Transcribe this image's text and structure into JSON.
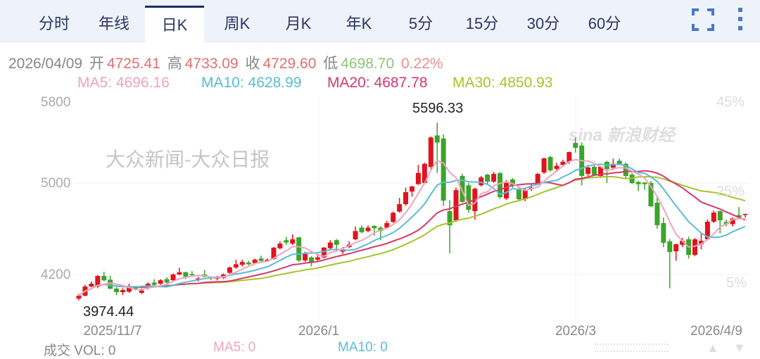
{
  "tabs": [
    {
      "label": "分时"
    },
    {
      "label": "年线"
    },
    {
      "label": "日K",
      "active": true
    },
    {
      "label": "周K"
    },
    {
      "label": "月K"
    },
    {
      "label": "年K"
    },
    {
      "label": "5分"
    },
    {
      "label": "15分"
    },
    {
      "label": "30分"
    },
    {
      "label": "60分"
    }
  ],
  "toolbar": {
    "fullscreen_icon": "fullscreen-icon",
    "more_icon": "more-vertical-icon"
  },
  "info": {
    "date": "2026/04/09",
    "open_label": "开",
    "open": "4725.41",
    "high_label": "高",
    "high": "4733.09",
    "close_label": "收",
    "close": "4729.60",
    "low_label": "低",
    "low": "4698.70",
    "change": "0.22%"
  },
  "ma": {
    "ma5": "MA5: 4696.16",
    "ma10": "MA10: 4628.99",
    "ma20": "MA20: 4687.78",
    "ma30": "MA30: 4850.93"
  },
  "colors": {
    "up": "#e0141e",
    "down": "#3aa52a",
    "ma5": "#f0a3bd",
    "ma10": "#5bbcd8",
    "ma20": "#d8386c",
    "ma30": "#a7c42a",
    "accent": "#1e2b66"
  },
  "chart_data": {
    "type": "candlestick",
    "y_ticks": [
      "5800",
      "5000",
      "4200"
    ],
    "pct_ticks": [
      "45%",
      "25%",
      "5%"
    ],
    "x_ticks": [
      "2025/11/7",
      "2026/1",
      "2026/3",
      "2026/4/9"
    ],
    "max_label": "5596.33",
    "min_label": "3974.44",
    "candles_ohlc": [
      [
        3990,
        4030,
        3974,
        4015
      ],
      [
        4015,
        4110,
        4010,
        4095
      ],
      [
        4095,
        4140,
        4090,
        4120
      ],
      [
        4095,
        4195,
        4080,
        4188
      ],
      [
        4188,
        4225,
        4140,
        4150
      ],
      [
        4155,
        4190,
        4070,
        4077
      ],
      [
        4077,
        4090,
        4020,
        4046
      ],
      [
        4046,
        4080,
        4020,
        4065
      ],
      [
        4050,
        4120,
        4040,
        4090
      ],
      [
        4090,
        4100,
        4060,
        4075
      ],
      [
        4040,
        4080,
        4030,
        4060
      ],
      [
        4090,
        4130,
        4070,
        4120
      ],
      [
        4130,
        4160,
        4100,
        4110
      ],
      [
        4120,
        4160,
        4110,
        4150
      ],
      [
        4160,
        4175,
        4120,
        4130
      ],
      [
        4150,
        4210,
        4140,
        4200
      ],
      [
        4200,
        4260,
        4195,
        4220
      ],
      [
        4220,
        4225,
        4160,
        4180
      ],
      [
        4205,
        4230,
        4190,
        4195
      ],
      [
        4150,
        4180,
        4140,
        4165
      ],
      [
        4200,
        4240,
        4175,
        4180
      ],
      [
        4175,
        4185,
        4150,
        4165
      ],
      [
        4165,
        4190,
        4150,
        4180
      ],
      [
        4170,
        4210,
        4160,
        4200
      ],
      [
        4215,
        4270,
        4205,
        4262
      ],
      [
        4262,
        4330,
        4250,
        4290
      ],
      [
        4285,
        4330,
        4270,
        4310
      ],
      [
        4305,
        4320,
        4280,
        4290
      ],
      [
        4300,
        4340,
        4290,
        4330
      ],
      [
        4340,
        4365,
        4310,
        4320
      ],
      [
        4320,
        4340,
        4310,
        4330
      ],
      [
        4335,
        4440,
        4330,
        4435
      ],
      [
        4430,
        4490,
        4420,
        4470
      ],
      [
        4500,
        4530,
        4460,
        4480
      ],
      [
        4470,
        4550,
        4460,
        4508
      ],
      [
        4525,
        4530,
        4310,
        4323
      ],
      [
        4323,
        4400,
        4310,
        4380
      ],
      [
        4350,
        4360,
        4270,
        4310
      ],
      [
        4330,
        4380,
        4320,
        4350
      ],
      [
        4350,
        4440,
        4340,
        4435
      ],
      [
        4430,
        4500,
        4420,
        4480
      ],
      [
        4500,
        4510,
        4400,
        4460
      ],
      [
        4400,
        4440,
        4380,
        4420
      ],
      [
        4440,
        4490,
        4430,
        4460
      ],
      [
        4508,
        4620,
        4500,
        4580
      ],
      [
        4610,
        4630,
        4560,
        4570
      ],
      [
        4580,
        4630,
        4570,
        4610
      ],
      [
        4625,
        4630,
        4540,
        4605
      ],
      [
        4610,
        4620,
        4500,
        4580
      ],
      [
        4610,
        4670,
        4600,
        4650
      ],
      [
        4660,
        4750,
        4650,
        4740
      ],
      [
        4750,
        4870,
        4740,
        4815
      ],
      [
        4815,
        4960,
        4800,
        4920
      ],
      [
        4925,
        4975,
        4880,
        4970
      ],
      [
        4990,
        5180,
        4985,
        5100
      ],
      [
        5000,
        5200,
        4990,
        5190
      ],
      [
        5160,
        5460,
        5140,
        5450
      ],
      [
        5470,
        5596.33,
        5100,
        5400
      ],
      [
        5440,
        5480,
        4800,
        4846
      ],
      [
        4754,
        4850,
        4385,
        4631
      ],
      [
        4674,
        4960,
        4660,
        4938
      ],
      [
        5070,
        5090,
        4830,
        4834
      ],
      [
        4980,
        5000,
        4740,
        4766
      ],
      [
        4754,
        4960,
        4680,
        4950
      ],
      [
        4980,
        5070,
        4970,
        5055
      ],
      [
        5083,
        5090,
        4990,
        5014
      ],
      [
        5014,
        5110,
        5000,
        5090
      ],
      [
        5097,
        5110,
        4860,
        4877
      ],
      [
        4865,
        5030,
        4850,
        5014
      ],
      [
        5035,
        5050,
        4960,
        4980
      ],
      [
        4950,
        4960,
        4840,
        4858
      ],
      [
        4858,
        4950,
        4840,
        4938
      ],
      [
        4950,
        4990,
        4930,
        4960
      ],
      [
        5000,
        5100,
        4990,
        5090
      ],
      [
        5104,
        5250,
        5090,
        5243
      ],
      [
        5257,
        5270,
        5110,
        5125
      ],
      [
        5140,
        5200,
        5120,
        5170
      ],
      [
        5180,
        5230,
        5160,
        5210
      ],
      [
        5209,
        5310,
        5190,
        5306
      ],
      [
        5396,
        5450,
        5300,
        5348
      ],
      [
        5370,
        5400,
        4980,
        5070
      ],
      [
        5090,
        5180,
        5070,
        5153
      ],
      [
        5160,
        5170,
        5070,
        5080
      ],
      [
        5070,
        5170,
        5050,
        5160
      ],
      [
        5209,
        5220,
        5000,
        5139
      ],
      [
        5150,
        5240,
        5130,
        5190
      ],
      [
        5220,
        5240,
        5180,
        5190
      ],
      [
        5190,
        5200,
        5040,
        5070
      ],
      [
        5083,
        5100,
        4990,
        5000
      ],
      [
        5010,
        5020,
        4930,
        4990
      ],
      [
        5005,
        5010,
        4940,
        4990
      ],
      [
        5000,
        5020,
        4790,
        4797
      ],
      [
        4828,
        4880,
        4600,
        4631
      ],
      [
        4650,
        4700,
        4440,
        4477
      ],
      [
        4490,
        4510,
        4080,
        4397
      ],
      [
        4403,
        4470,
        4320,
        4465
      ],
      [
        4460,
        4520,
        4440,
        4495
      ],
      [
        4508,
        4530,
        4340,
        4372
      ],
      [
        4372,
        4520,
        4360,
        4508
      ],
      [
        4465,
        4560,
        4420,
        4495
      ],
      [
        4508,
        4680,
        4500,
        4662
      ],
      [
        4662,
        4760,
        4650,
        4742
      ],
      [
        4754,
        4760,
        4560,
        4674
      ],
      [
        4660,
        4680,
        4620,
        4640
      ],
      [
        4640,
        4700,
        4620,
        4690
      ],
      [
        4720,
        4790,
        4690,
        4700
      ],
      [
        4725.41,
        4733.09,
        4698.7,
        4729.6
      ]
    ]
  },
  "bottom": {
    "vol": "成交  VOL: 0",
    "ma5": "MA5: 0",
    "ma10": "MA10: 0"
  },
  "watermarks": {
    "news": "大众新闻-大众日报",
    "sina": "sina新浪财经"
  }
}
